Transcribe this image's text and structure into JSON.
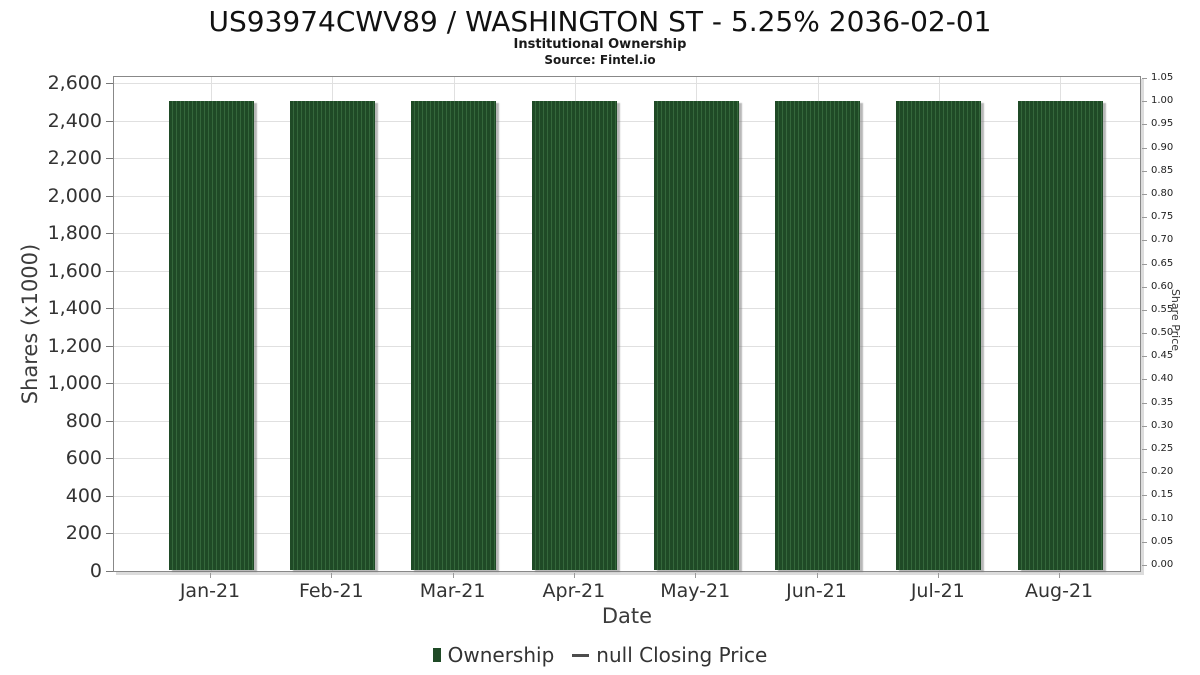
{
  "chart_data": {
    "type": "bar",
    "title": "US93974CWV89 / WASHINGTON ST - 5.25% 2036-02-01",
    "subtitle": "Institutional Ownership",
    "source": "Source: Fintel.io",
    "categories": [
      "Jan-21",
      "Feb-21",
      "Mar-21",
      "Apr-21",
      "May-21",
      "Jun-21",
      "Jul-21",
      "Aug-21"
    ],
    "series": [
      {
        "name": "Ownership",
        "values": [
          2500,
          2500,
          2500,
          2500,
          2500,
          2500,
          2500,
          2500
        ]
      }
    ],
    "xlabel": "Date",
    "ylabel_left": "Shares (x1000)",
    "ylabel_right": "Share Price",
    "y_left": {
      "min": 0,
      "max": 2600,
      "step": 200
    },
    "y_right": {
      "min": 0,
      "max": 1.05,
      "step": 0.05
    },
    "grid": true,
    "legend_position": "bottom",
    "legend": [
      {
        "label": "Ownership",
        "marker": "square",
        "color": "#1f4a26"
      },
      {
        "label": "null Closing Price",
        "marker": "line",
        "color": "#4d4d4d"
      }
    ],
    "colors": {
      "bar": "#1f4a26",
      "bar_stripe": "#34673b",
      "grid": "#e0e0e0",
      "frame": "#888888",
      "text": "#333333"
    }
  }
}
